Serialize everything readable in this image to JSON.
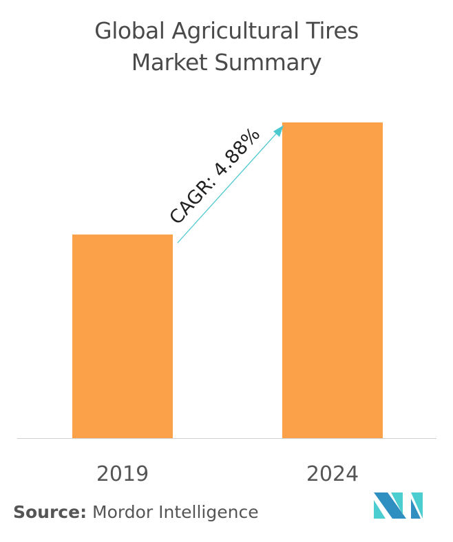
{
  "chart_data": {
    "type": "bar",
    "title": "Global Agricultural Tires Market Summary",
    "title_lines": [
      "Global Agricultural Tires",
      "Market Summary"
    ],
    "categories": [
      "2019",
      "2024"
    ],
    "values": [
      64.5,
      100
    ],
    "value_note_unit": "relative height (no axis printed)",
    "ylim": [
      0,
      100
    ],
    "grid": false,
    "bar_color": "#fba14a",
    "annotation": {
      "text": "CAGR: 4.88%",
      "arrow_color": "#4cc8cf"
    }
  },
  "source": {
    "label": "Source:",
    "text": "Mordor Intelligence"
  },
  "logo": {
    "colors": [
      "#2e8fc0",
      "#4ccdd0"
    ]
  }
}
